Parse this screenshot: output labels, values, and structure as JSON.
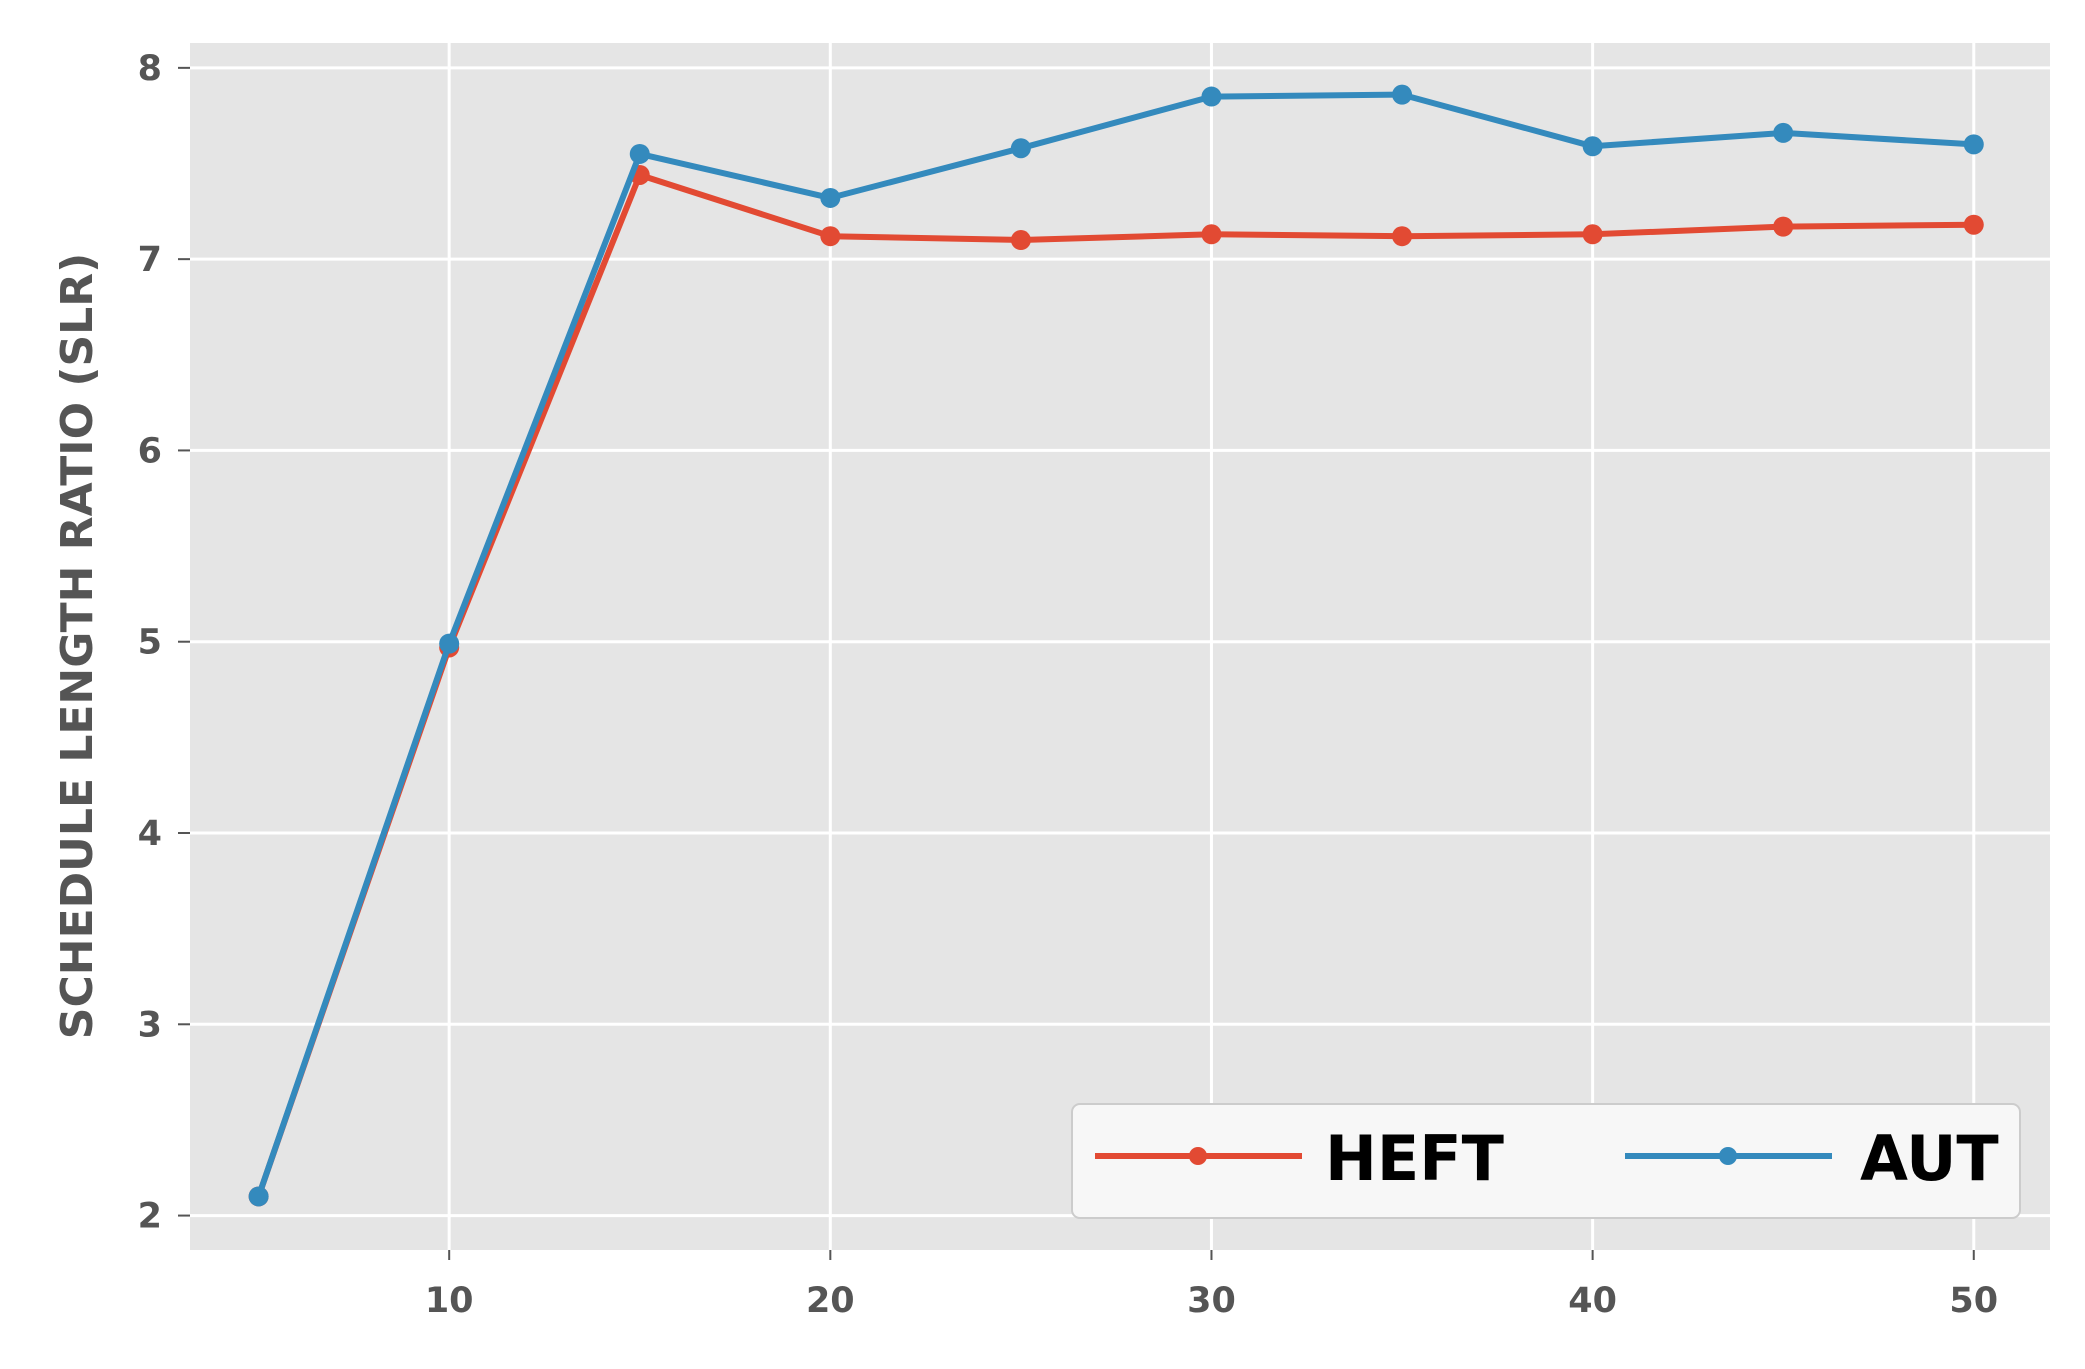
{
  "chart_data": {
    "type": "line",
    "title": "",
    "xlabel": "",
    "ylabel": "SCHEDULE LENGTH RATIO (SLR)",
    "x": [
      5,
      10,
      15,
      20,
      25,
      30,
      35,
      40,
      45,
      50
    ],
    "xlim": [
      3.2,
      52
    ],
    "ylim": [
      1.82,
      8.13
    ],
    "x_ticks": [
      10,
      20,
      30,
      40,
      50
    ],
    "y_ticks": [
      2,
      3,
      4,
      5,
      6,
      7,
      8
    ],
    "grid": true,
    "legend_position": "bottom-right",
    "series": [
      {
        "name": "HEFT",
        "color": "#E24A33",
        "values": [
          2.1,
          4.97,
          7.44,
          7.12,
          7.1,
          7.13,
          7.12,
          7.13,
          7.17,
          7.18
        ]
      },
      {
        "name": "AUT",
        "color": "#348ABD",
        "values": [
          2.1,
          4.99,
          7.55,
          7.32,
          7.58,
          7.85,
          7.86,
          7.59,
          7.66,
          7.6
        ]
      }
    ]
  },
  "style": {
    "plot_background": "#E5E5E5",
    "grid_color": "#FFFFFF",
    "tick_color": "#555555"
  }
}
